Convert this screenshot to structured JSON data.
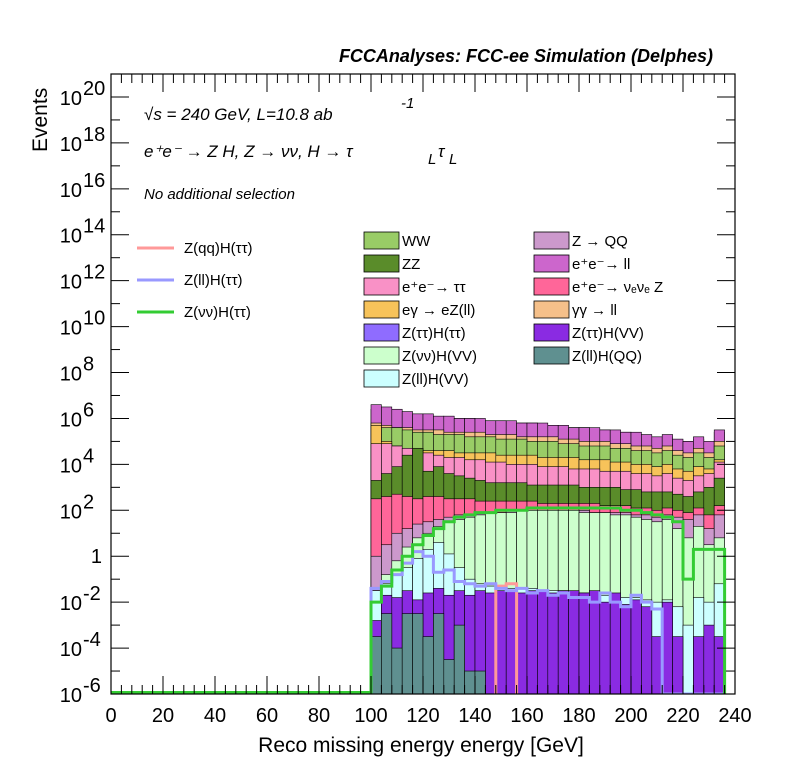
{
  "header": {
    "title": "FCCAnalyses: FCC-ee Simulation (Delphes)"
  },
  "annotations": {
    "energy_line": "√s = 240 GeV, L=10.8 ab",
    "energy_exp": "-1",
    "process_line": "e⁺e⁻ → Z H, Z → νν, H → τ",
    "process_sub1": "L",
    "process_tau2": "τ",
    "process_sub2": "L",
    "selection": "No additional selection"
  },
  "colors": {
    "WW": "#99cc66",
    "ZZ": "#5a8c2a",
    "ee_tautau": "#f991c6",
    "egamma_eZ": "#f7c35a",
    "Ztautau_Htautau": "#8f6cff",
    "Znunu_HVV": "#ccffcc",
    "Zll_HVV": "#ccffff",
    "Z_QQ": "#cc99cc",
    "ee_ll": "#cc66cc",
    "ee_nunuZ": "#ff6699",
    "gg_ll": "#f5c08a",
    "Ztautau_HVV": "#8a2be2",
    "Zll_HQQ": "#5f9090",
    "sig_qq": "#ff9999",
    "sig_ll": "#9999ff",
    "sig_nunu": "#33cc33"
  },
  "chart_data": {
    "type": "histogram",
    "title": "",
    "xlabel": "Reco missing energy energy [GeV]",
    "ylabel": "Events",
    "xlim": [
      0,
      240
    ],
    "ylim": [
      1e-06,
      1e+21
    ],
    "yscale": "log",
    "x_ticks": [
      "0",
      "20",
      "40",
      "60",
      "80",
      "100",
      "120",
      "140",
      "160",
      "180",
      "200",
      "220",
      "240"
    ],
    "y_ticks": [
      {
        "base": "10",
        "exp": "-6"
      },
      {
        "base": "10",
        "exp": "-4"
      },
      {
        "base": "10",
        "exp": "-2"
      },
      {
        "base": "1",
        "exp": ""
      },
      {
        "base": "10",
        "exp": "2"
      },
      {
        "base": "10",
        "exp": "4"
      },
      {
        "base": "10",
        "exp": "6"
      },
      {
        "base": "10",
        "exp": "8"
      },
      {
        "base": "10",
        "exp": "10"
      },
      {
        "base": "10",
        "exp": "12"
      },
      {
        "base": "10",
        "exp": "14"
      },
      {
        "base": "10",
        "exp": "16"
      },
      {
        "base": "10",
        "exp": "18"
      },
      {
        "base": "10",
        "exp": "20"
      }
    ],
    "y_tick_values": [
      1e-06,
      0.0001,
      0.01,
      1,
      100.0,
      10000.0,
      1000000.0,
      100000000.0,
      10000000000.0,
      1000000000000.0,
      100000000000000.0,
      1e+16,
      1e+18,
      1e+20
    ],
    "bin_width": 4,
    "bin_start": 100,
    "stack_tops": [
      {
        "name": "Z → QQ",
        "key": "Z_QQ",
        "log10": [
          6.4,
          6.3,
          6.2,
          6.2,
          6.1,
          6.1,
          6.0,
          6.0,
          6.0,
          6.0,
          5.9,
          5.9,
          5.9,
          5.8,
          5.8,
          5.8,
          5.7,
          5.7,
          5.6,
          5.6,
          5.6,
          5.5,
          5.5,
          5.4,
          5.4,
          5.3,
          5.2,
          5.1,
          5.2,
          5.0,
          5.0,
          5.1,
          4.9,
          5.4
        ]
      },
      {
        "name": "e⁺e⁻ → ll",
        "key": "ee_ll",
        "log10": [
          6.6,
          6.5,
          6.4,
          6.3,
          6.2,
          6.2,
          6.1,
          6.1,
          6.0,
          6.0,
          6.0,
          5.9,
          5.9,
          5.9,
          5.8,
          5.8,
          5.8,
          5.7,
          5.7,
          5.6,
          5.6,
          5.6,
          5.5,
          5.5,
          5.4,
          5.4,
          5.3,
          5.2,
          5.3,
          5.1,
          5.0,
          5.2,
          5.0,
          5.5
        ]
      },
      {
        "name": "γγ → ll",
        "key": "gg_ll",
        "log10": [
          5.8,
          5.7,
          5.6,
          5.6,
          5.5,
          5.5,
          5.5,
          5.4,
          5.4,
          5.4,
          5.4,
          5.3,
          5.3,
          5.3,
          5.2,
          5.2,
          5.2,
          5.2,
          5.1,
          5.1,
          5.0,
          5.0,
          5.0,
          4.9,
          4.9,
          4.8,
          4.8,
          4.7,
          4.8,
          4.6,
          4.5,
          4.7,
          4.5,
          5.0
        ]
      },
      {
        "name": "WW",
        "key": "WW",
        "log10": [
          5.5,
          5.6,
          5.6,
          5.5,
          5.4,
          5.4,
          5.3,
          5.3,
          5.3,
          5.2,
          5.2,
          5.2,
          5.1,
          5.1,
          5.1,
          5.0,
          5.0,
          5.0,
          4.9,
          4.9,
          4.8,
          4.8,
          4.8,
          4.7,
          4.7,
          4.6,
          4.6,
          4.5,
          4.6,
          4.4,
          4.3,
          4.5,
          4.3,
          4.8
        ]
      },
      {
        "name": "eγ → eZ(ll)",
        "key": "egamma_eZ",
        "log10": [
          5.7,
          5.0,
          4.8,
          4.7,
          4.7,
          4.6,
          4.6,
          4.6,
          4.5,
          4.5,
          4.5,
          4.5,
          4.4,
          4.4,
          4.4,
          4.4,
          4.3,
          4.3,
          4.3,
          4.3,
          4.2,
          4.2,
          4.2,
          4.1,
          4.1,
          4.0,
          4.0,
          3.9,
          4.0,
          3.8,
          3.7,
          3.9,
          3.8,
          4.2
        ]
      },
      {
        "name": "e⁺e⁻ → ττ",
        "key": "ee_tautau",
        "log10": [
          4.9,
          4.9,
          4.8,
          4.7,
          4.6,
          4.5,
          4.4,
          4.3,
          4.3,
          4.2,
          4.2,
          4.1,
          4.1,
          4.0,
          4.0,
          4.0,
          3.9,
          3.9,
          3.9,
          3.8,
          3.8,
          3.8,
          3.7,
          3.7,
          3.7,
          3.6,
          3.6,
          3.5,
          3.6,
          3.4,
          3.3,
          3.5,
          3.6,
          4.1
        ]
      },
      {
        "name": "ZZ",
        "key": "ZZ",
        "log10": [
          3.3,
          3.6,
          3.9,
          4.4,
          4.7,
          3.7,
          3.9,
          3.6,
          3.5,
          3.4,
          3.3,
          3.2,
          3.2,
          3.2,
          3.2,
          3.1,
          3.1,
          3.1,
          3.1,
          3.1,
          3.0,
          3.0,
          3.0,
          3.0,
          2.9,
          2.9,
          2.8,
          2.8,
          2.8,
          2.7,
          2.6,
          2.8,
          3.0,
          3.4
        ]
      },
      {
        "name": "e⁺e⁻ → ν_eν_e Z",
        "key": "ee_nunuZ",
        "log10": [
          2.5,
          2.6,
          2.7,
          2.6,
          2.5,
          2.6,
          2.6,
          2.5,
          2.5,
          2.5,
          2.4,
          2.4,
          2.4,
          2.4,
          2.4,
          2.4,
          2.3,
          2.3,
          2.3,
          2.3,
          2.3,
          2.3,
          2.2,
          2.2,
          2.2,
          2.1,
          2.1,
          2.0,
          2.1,
          2.0,
          1.9,
          2.1,
          1.8,
          2.2
        ]
      }
    ],
    "lower_stack_tops_log10": {
      "Z_QQ_body": [
        0.0,
        0.5,
        1.0,
        1.2,
        1.4,
        1.5,
        1.6,
        1.7,
        1.8,
        1.8,
        1.9,
        1.9,
        1.9,
        2.0,
        2.0,
        2.0,
        2.0,
        2.0,
        2.0,
        2.0,
        2.0,
        1.9,
        1.9,
        1.9,
        1.9,
        1.8,
        1.8,
        1.7,
        1.8,
        1.7,
        1.6,
        1.8,
        1.2,
        1.8
      ],
      "Znunu_HVV": [
        -1.5,
        -0.8,
        -0.2,
        0.4,
        0.8,
        1.0,
        1.3,
        1.5,
        1.6,
        1.7,
        1.8,
        1.9,
        1.9,
        1.9,
        2.0,
        2.0,
        2.0,
        2.0,
        2.0,
        2.0,
        1.9,
        1.9,
        1.9,
        1.8,
        1.8,
        1.7,
        1.6,
        1.5,
        1.6,
        1.2,
        0.8,
        1.3,
        0.5,
        0.8
      ],
      "Zll_HVV": [
        -1.5,
        -1.2,
        -0.8,
        -0.5,
        -0.1,
        0.3,
        0.6,
        0.1,
        -0.5,
        -1.0,
        -1.2,
        -1.3,
        -1.3,
        -1.4,
        -1.4,
        -1.4,
        -1.5,
        -1.5,
        -1.5,
        -1.6,
        -1.6,
        -1.6,
        -1.7,
        -1.7,
        -1.8,
        -1.8,
        -1.9,
        -2.0,
        -1.9,
        -2.2,
        -3.0,
        -1.8,
        -2.0,
        -1.2
      ],
      "Ztautau_HVV": [
        -2.8,
        -1.7,
        -1.8,
        -1.5,
        -1.9,
        -1.6,
        -1.4,
        -1.7,
        -1.5,
        -1.7,
        -1.5,
        -1.6,
        -1.5,
        -1.5,
        -1.6,
        -1.5,
        -1.5,
        -1.6,
        -1.5,
        -1.5,
        -1.6,
        -1.5,
        -2.0,
        -1.6,
        -2.1,
        -1.9,
        -2.2,
        -3.5,
        -2.0,
        -3.5,
        -6.0,
        -3.5,
        -3.0,
        -3.5
      ],
      "Zll_HQQ": [
        -3.5,
        -2.5,
        -4.0,
        -2.5,
        -2.5,
        -3.5,
        -2.5,
        -4.5,
        -3.0,
        -5.0,
        -5.0,
        -6.0,
        -6.0,
        -6.0,
        -6.0,
        -6.0,
        -6.0,
        -6.0,
        -6.0,
        -6.0,
        -6.0,
        -6.0,
        -6.0,
        -6.0,
        -6.0,
        -6.0,
        -6.0,
        -6.0,
        -6.0,
        -6.0,
        -6.0,
        -6.0,
        -6.0,
        -6.0
      ]
    },
    "series": [
      {
        "name": "Z(qq)H(ττ)",
        "key": "sig_qq",
        "style": "line",
        "x_range": [
          148,
          156
        ],
        "log10": [
          -1.3,
          -1.2
        ]
      },
      {
        "name": "Z(ll)H(ττ)",
        "key": "sig_ll",
        "style": "line",
        "log10": [
          -1.4,
          -1.1,
          -0.8,
          -0.3,
          0.2,
          0.0,
          -0.7,
          -0.6,
          -1.1,
          -1.2,
          -1.3,
          -1.2,
          -1.4,
          -1.5,
          -1.4,
          -1.6,
          -1.5,
          -1.7,
          -1.6,
          -1.8,
          -1.8,
          -2.0,
          -1.6,
          -2.0,
          -2.2,
          -1.7,
          -2.0,
          -2.3,
          -6.0,
          -6.0,
          -6.0,
          -6.0,
          -6.0,
          -6.0
        ]
      },
      {
        "name": "Z(νν)H(ττ)",
        "key": "sig_nunu",
        "style": "line",
        "log10": [
          -2.0,
          -1.3,
          -0.6,
          0.0,
          0.5,
          0.9,
          1.2,
          1.5,
          1.7,
          1.8,
          1.9,
          1.9,
          2.0,
          2.0,
          2.0,
          2.1,
          2.1,
          2.1,
          2.1,
          2.1,
          2.1,
          2.1,
          2.1,
          2.1,
          2.0,
          2.0,
          1.9,
          1.8,
          1.7,
          1.5,
          -1.0,
          0.3,
          0.3,
          0.3
        ]
      }
    ],
    "legend_left": [
      "Z(qq)H(ττ)",
      "Z(ll)H(ττ)",
      "Z(νν)H(ττ)"
    ],
    "legend_col1": [
      "WW",
      "ZZ",
      "e⁺e⁻→ ττ",
      "eγ → eZ(ll)",
      "Z(ττ)H(ττ)",
      "Z(νν)H(VV)",
      "Z(ll)H(VV)"
    ],
    "legend_col2": [
      "Z → QQ",
      "e⁺e⁻→ ll",
      "e⁺e⁻→ νₑνₑ Z",
      "γγ → ll",
      "Z(ττ)H(VV)",
      "Z(ll)H(QQ)"
    ],
    "legend_col1_keys": [
      "WW",
      "ZZ",
      "ee_tautau",
      "egamma_eZ",
      "Ztautau_Htautau",
      "Znunu_HVV",
      "Zll_HVV"
    ],
    "legend_col2_keys": [
      "Z_QQ",
      "ee_ll",
      "ee_nunuZ",
      "gg_ll",
      "Ztautau_HVV",
      "Zll_HQQ"
    ],
    "legend_left_keys": [
      "sig_qq",
      "sig_ll",
      "sig_nunu"
    ],
    "legend_placement": "top-right (inside frame)",
    "grid": false
  }
}
